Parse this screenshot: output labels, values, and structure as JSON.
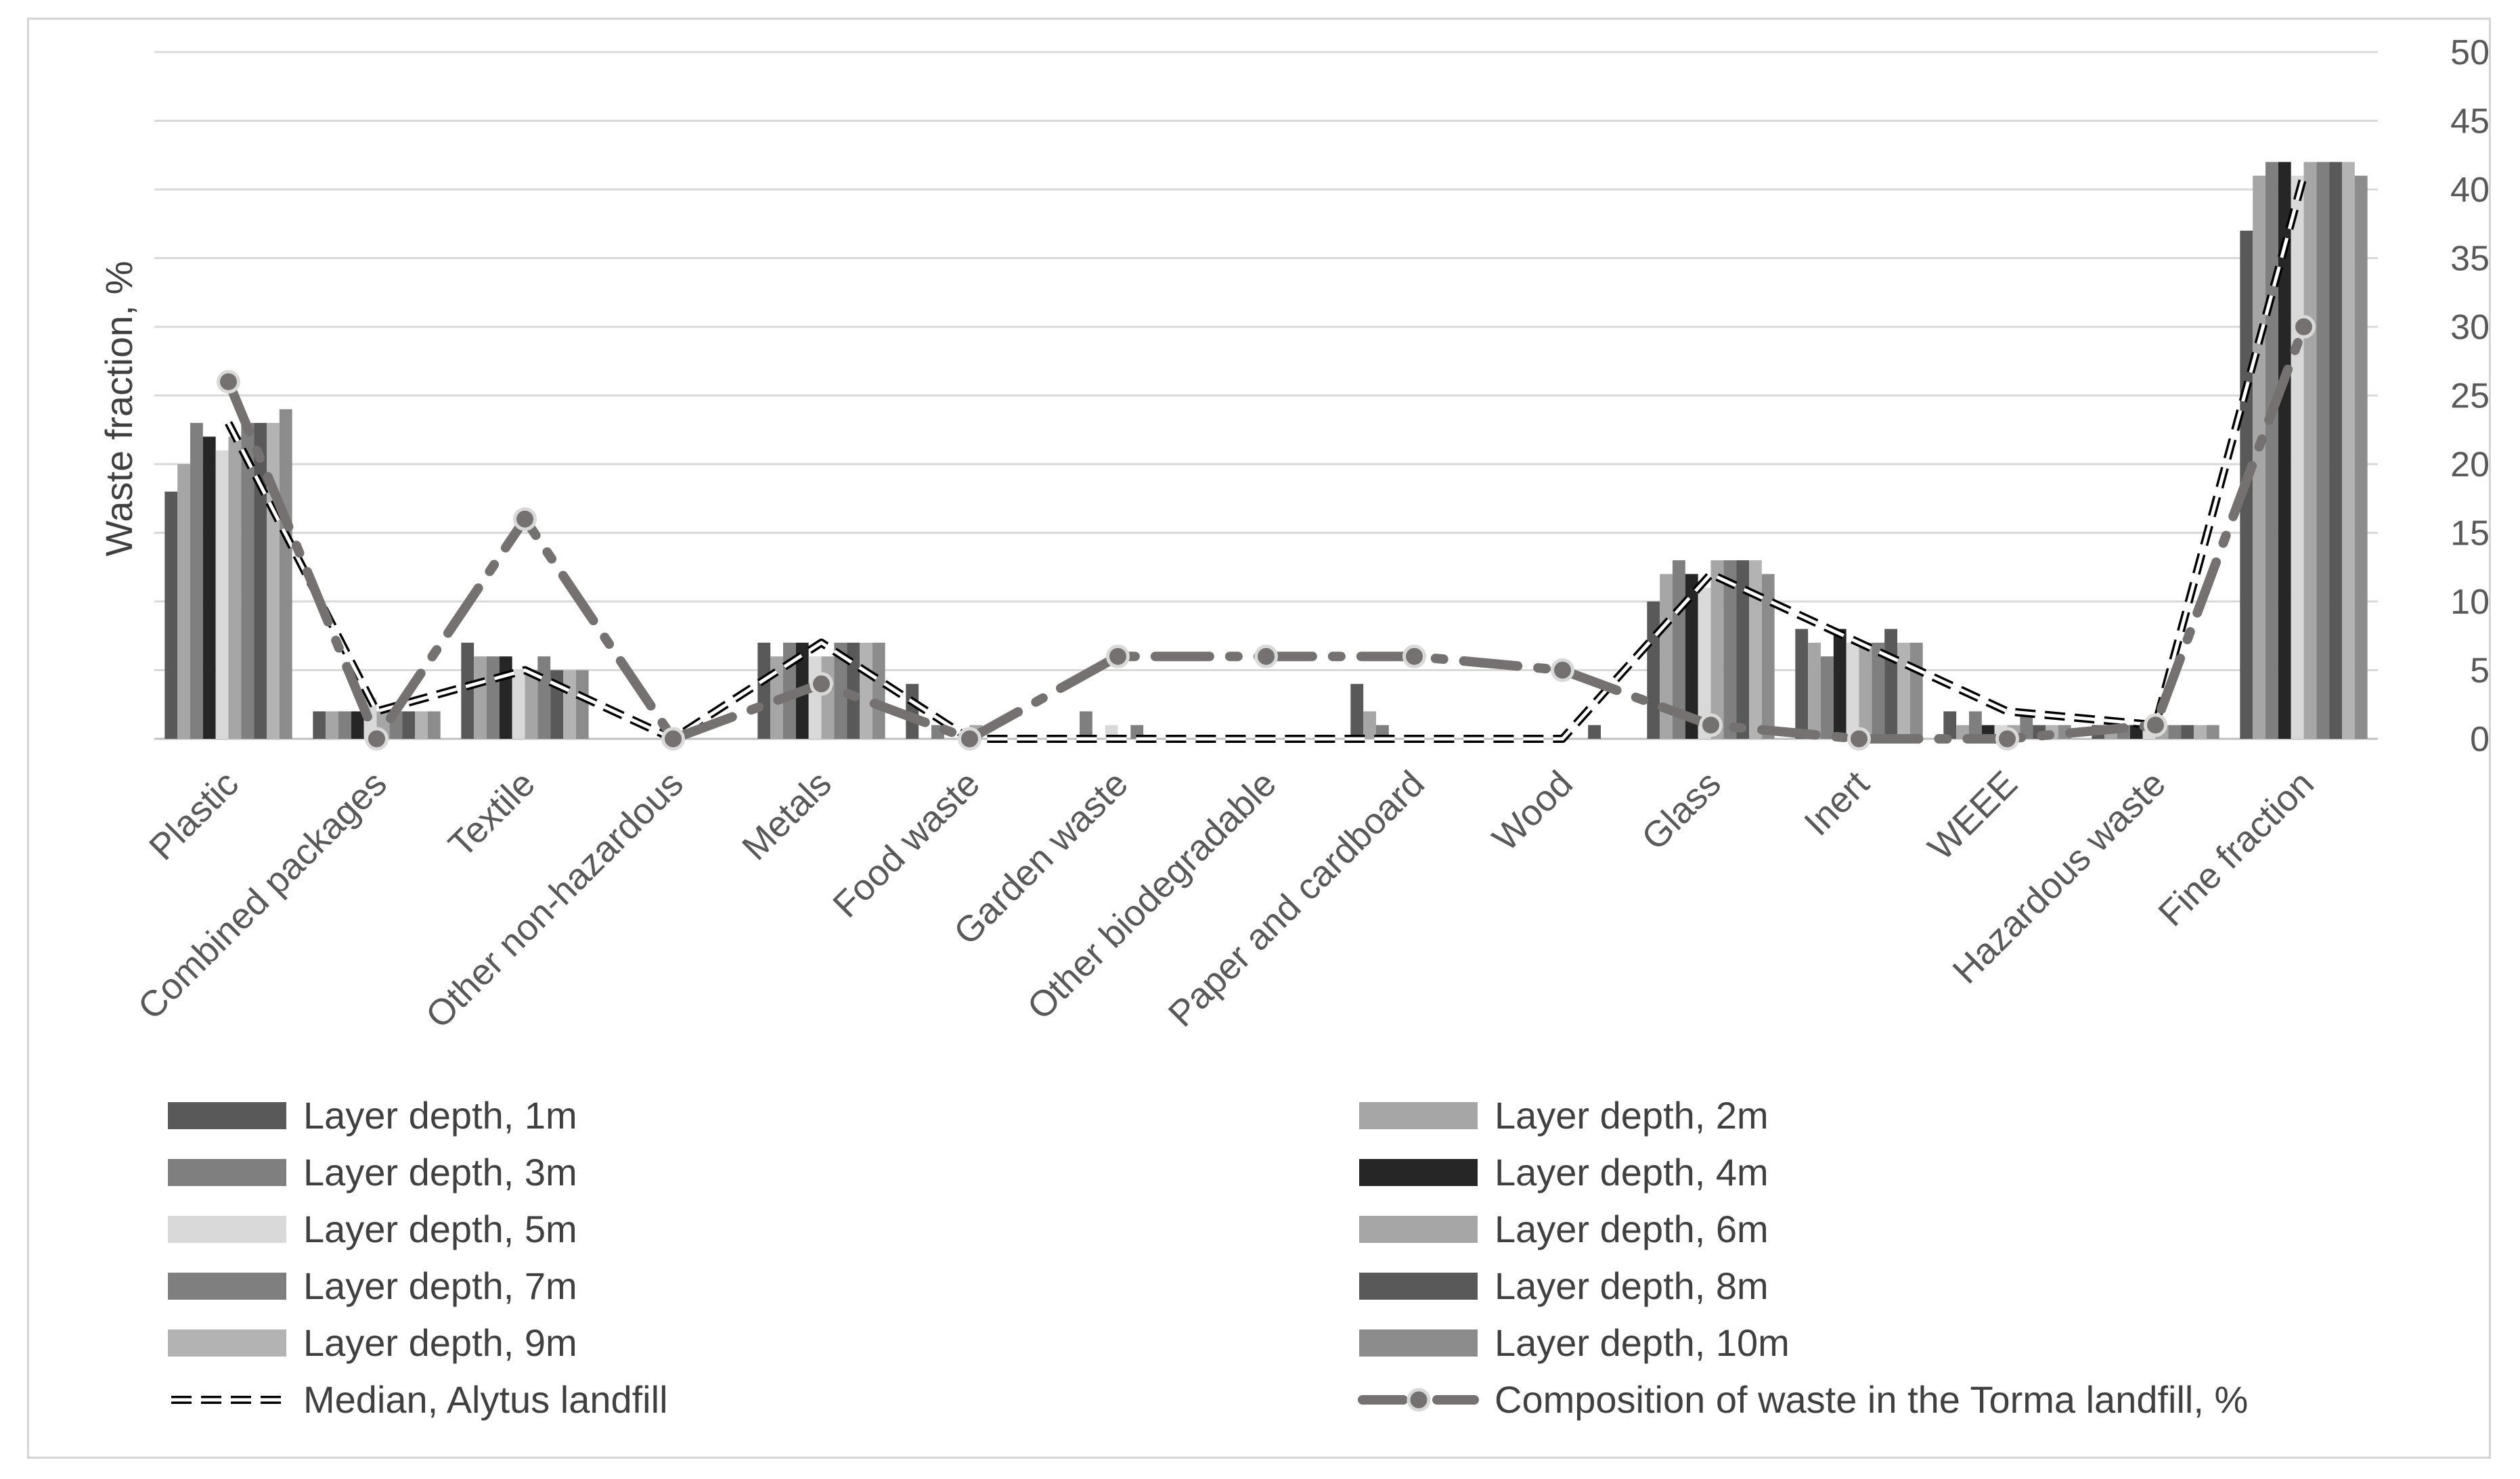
{
  "chart_data": {
    "type": "bar",
    "ylabel": "Waste fraction, %",
    "ylim": [
      0,
      50
    ],
    "yticks": [
      0,
      5,
      10,
      15,
      20,
      25,
      30,
      35,
      40,
      45,
      50
    ],
    "y_axis_position": "right",
    "grid": true,
    "legend_position": "bottom",
    "categories": [
      "Plastic",
      "Combined packages",
      "Textile",
      "Other non-hazardous",
      "Metals",
      "Food waste",
      "Garden waste",
      "Other biodegradable",
      "Paper and cardboard",
      "Wood",
      "Glass",
      "Inert",
      "WEEE",
      "Hazardous waste",
      "Fine fraction"
    ],
    "series": [
      {
        "name": "Layer depth, 1m",
        "type": "bar",
        "color": "#595959",
        "values": [
          18,
          2,
          7,
          0,
          7,
          4,
          0,
          0,
          4,
          0,
          10,
          8,
          2,
          1,
          37
        ]
      },
      {
        "name": "Layer depth, 2m",
        "type": "bar",
        "color": "#a6a6a6",
        "values": [
          20,
          2,
          6,
          0,
          6,
          0,
          0,
          0,
          2,
          0,
          12,
          7,
          1,
          1,
          41
        ]
      },
      {
        "name": "Layer depth, 3m",
        "type": "bar",
        "color": "#7f7f7f",
        "values": [
          23,
          2,
          6,
          0,
          7,
          1,
          2,
          0,
          1,
          0,
          13,
          6,
          2,
          1,
          42
        ]
      },
      {
        "name": "Layer depth, 4m",
        "type": "bar",
        "color": "#262626",
        "values": [
          22,
          2,
          6,
          0,
          7,
          0,
          0,
          0,
          0,
          0,
          12,
          8,
          1,
          1,
          42
        ]
      },
      {
        "name": "Layer depth, 5m",
        "type": "bar",
        "color": "#d9d9d9",
        "values": [
          21,
          3,
          5,
          0,
          6,
          0,
          1,
          0,
          0,
          0,
          11,
          7,
          1,
          1,
          41
        ]
      },
      {
        "name": "Layer depth, 6m",
        "type": "bar",
        "color": "#a6a6a6",
        "values": [
          22,
          2,
          5,
          0,
          6,
          1,
          0,
          0,
          0,
          0,
          13,
          7,
          1,
          1,
          42
        ]
      },
      {
        "name": "Layer depth, 7m",
        "type": "bar",
        "color": "#7f7f7f",
        "values": [
          23,
          2,
          6,
          0,
          7,
          0,
          1,
          0,
          0,
          0,
          13,
          7,
          2,
          1,
          42
        ]
      },
      {
        "name": "Layer depth, 8m",
        "type": "bar",
        "color": "#595959",
        "values": [
          23,
          2,
          5,
          0,
          7,
          0,
          0,
          0,
          0,
          1,
          13,
          8,
          1,
          1,
          42
        ]
      },
      {
        "name": "Layer depth, 9m",
        "type": "bar",
        "color": "#b3b3b3",
        "values": [
          23,
          2,
          5,
          0,
          7,
          0,
          0,
          0,
          0,
          0,
          13,
          7,
          1,
          1,
          42
        ]
      },
      {
        "name": "Layer depth, 10m",
        "type": "bar",
        "color": "#8c8c8c",
        "values": [
          24,
          2,
          5,
          0,
          7,
          0,
          0,
          0,
          0,
          0,
          12,
          7,
          1,
          1,
          41
        ]
      },
      {
        "name": "Median, Alytus landfill",
        "type": "line",
        "style": "dashed-outline",
        "color": "#000000",
        "values": [
          23,
          2,
          5,
          0,
          7,
          0,
          0,
          0,
          0,
          0,
          12,
          7,
          2,
          1,
          41
        ]
      },
      {
        "name": "Composition of waste in the Torma landfill, %",
        "type": "line",
        "style": "dash-dot-markers",
        "color": "#767171",
        "values": [
          26,
          0,
          16,
          0,
          4,
          0,
          6,
          6,
          6,
          5,
          1,
          0,
          0,
          1,
          30
        ]
      }
    ]
  }
}
